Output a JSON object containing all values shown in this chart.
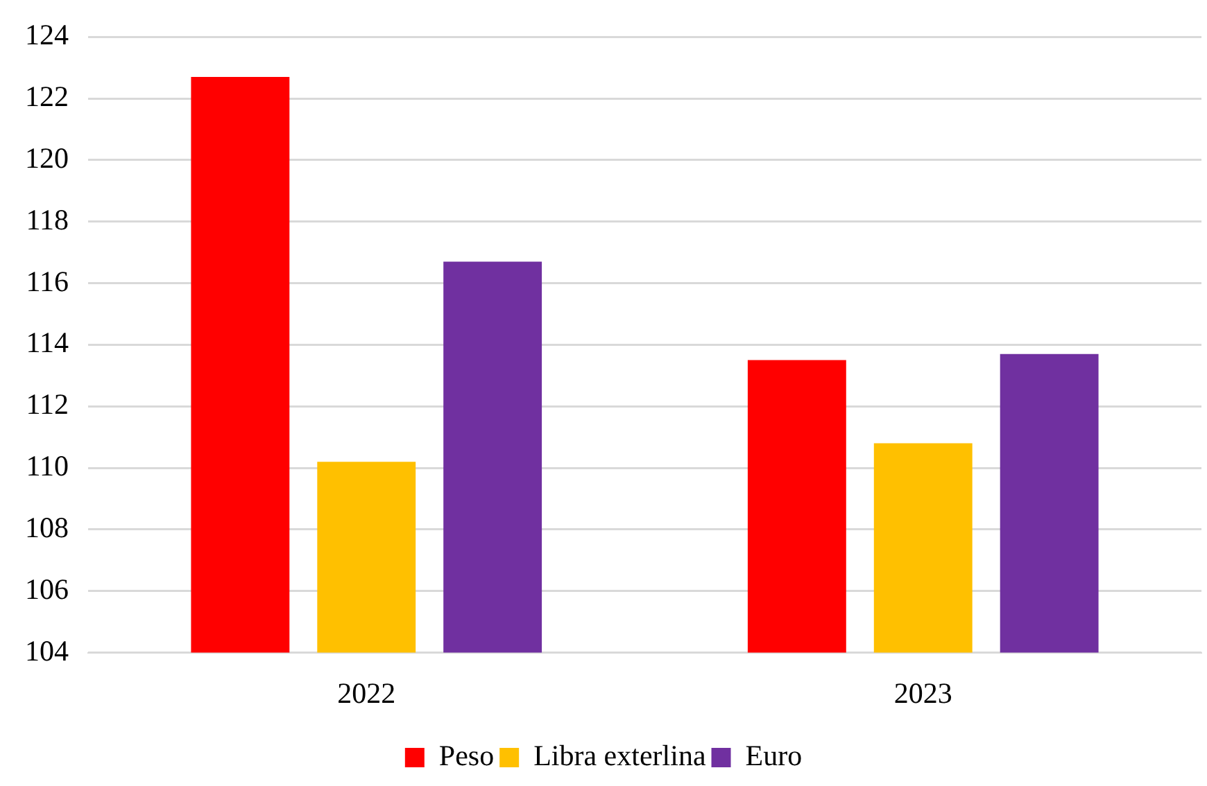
{
  "chart_data": {
    "type": "bar",
    "categories": [
      "2022",
      "2023"
    ],
    "series": [
      {
        "name": "Peso",
        "color": "#ff0000",
        "values": [
          122.7,
          113.5
        ]
      },
      {
        "name": "Libra exterlina",
        "color": "#ffc000",
        "values": [
          110.2,
          110.8
        ]
      },
      {
        "name": "Euro",
        "color": "#7030a0",
        "values": [
          116.7,
          113.7
        ]
      }
    ],
    "ylim": [
      104,
      124
    ],
    "yticks": [
      104,
      106,
      108,
      110,
      112,
      114,
      116,
      118,
      120,
      122,
      124
    ],
    "grid": "y",
    "legend": "bottom"
  }
}
